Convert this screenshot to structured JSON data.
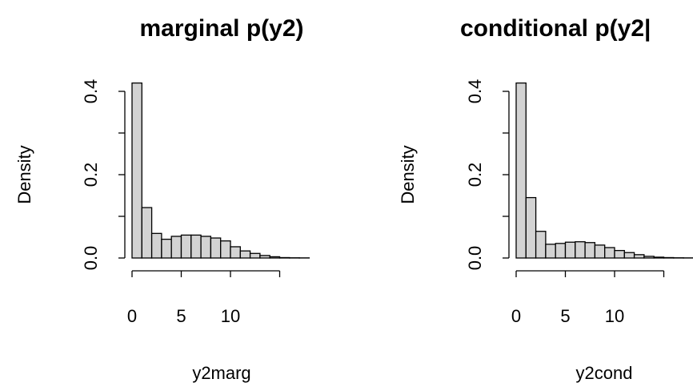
{
  "chart_data": [
    {
      "type": "histogram",
      "title": "marginal p(y2)",
      "xlabel": "y2marg",
      "ylabel": "Density",
      "xticks": [
        0,
        5,
        10,
        15
      ],
      "xtick_labels": [
        "0",
        "5",
        "10",
        ""
      ],
      "yticks": [
        0,
        0.1,
        0.2,
        0.3,
        0.4
      ],
      "ytick_labels": [
        "0.0",
        "",
        "0.2",
        "",
        "0.4"
      ],
      "xlim": [
        0,
        18
      ],
      "ylim": [
        0,
        0.4
      ],
      "bar_fill": "#d3d3d3",
      "bar_stroke": "#000000",
      "bins": [
        0,
        1,
        2,
        3,
        4,
        5,
        6,
        7,
        8,
        9,
        10,
        11,
        12,
        13,
        14,
        15,
        16,
        17,
        18
      ],
      "values": [
        0.42,
        0.121,
        0.059,
        0.045,
        0.052,
        0.055,
        0.055,
        0.052,
        0.048,
        0.041,
        0.027,
        0.017,
        0.011,
        0.006,
        0.003,
        0.001,
        0.0005,
        0.0003
      ]
    },
    {
      "type": "histogram",
      "title": "conditional p(y2|",
      "xlabel": "y2cond",
      "ylabel": "Density",
      "xticks": [
        0,
        5,
        10,
        15
      ],
      "xtick_labels": [
        "0",
        "5",
        "10",
        ""
      ],
      "yticks": [
        0,
        0.1,
        0.2,
        0.3,
        0.4
      ],
      "ytick_labels": [
        "0.0",
        "",
        "0.2",
        "",
        "0.4"
      ],
      "xlim": [
        0,
        18
      ],
      "ylim": [
        0,
        0.4
      ],
      "bar_fill": "#d3d3d3",
      "bar_stroke": "#000000",
      "bins": [
        0,
        1,
        2,
        3,
        4,
        5,
        6,
        7,
        8,
        9,
        10,
        11,
        12,
        13,
        14,
        15,
        16,
        17,
        18
      ],
      "values": [
        0.42,
        0.145,
        0.064,
        0.033,
        0.035,
        0.038,
        0.039,
        0.037,
        0.031,
        0.025,
        0.018,
        0.013,
        0.008,
        0.004,
        0.002,
        0.001,
        0.0005,
        0.0003
      ]
    }
  ]
}
